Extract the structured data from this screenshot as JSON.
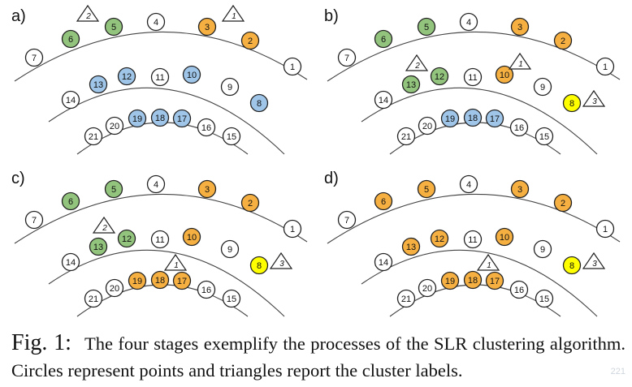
{
  "panels": [
    {
      "label": "a)",
      "nodes": [
        {
          "id": "1",
          "color": "white"
        },
        {
          "id": "2",
          "color": "orange"
        },
        {
          "id": "3",
          "color": "orange"
        },
        {
          "id": "4",
          "color": "white"
        },
        {
          "id": "5",
          "color": "green"
        },
        {
          "id": "6",
          "color": "green"
        },
        {
          "id": "7",
          "color": "white"
        },
        {
          "id": "8",
          "color": "blue"
        },
        {
          "id": "9",
          "color": "white"
        },
        {
          "id": "10",
          "color": "blue"
        },
        {
          "id": "11",
          "color": "white"
        },
        {
          "id": "12",
          "color": "blue"
        },
        {
          "id": "13",
          "color": "blue"
        },
        {
          "id": "14",
          "color": "white"
        },
        {
          "id": "15",
          "color": "white"
        },
        {
          "id": "16",
          "color": "white"
        },
        {
          "id": "17",
          "color": "blue"
        },
        {
          "id": "18",
          "color": "blue"
        },
        {
          "id": "19",
          "color": "blue"
        },
        {
          "id": "20",
          "color": "white"
        },
        {
          "id": "21",
          "color": "white"
        }
      ],
      "triangles": [
        {
          "label": "2",
          "slot": "top-left"
        },
        {
          "label": "1",
          "slot": "top-right"
        }
      ]
    },
    {
      "label": "b)",
      "nodes": [
        {
          "id": "1",
          "color": "white"
        },
        {
          "id": "2",
          "color": "orange"
        },
        {
          "id": "3",
          "color": "orange"
        },
        {
          "id": "4",
          "color": "white"
        },
        {
          "id": "5",
          "color": "green"
        },
        {
          "id": "6",
          "color": "green"
        },
        {
          "id": "7",
          "color": "white"
        },
        {
          "id": "8",
          "color": "yellow"
        },
        {
          "id": "9",
          "color": "white"
        },
        {
          "id": "10",
          "color": "orange"
        },
        {
          "id": "11",
          "color": "white"
        },
        {
          "id": "12",
          "color": "green"
        },
        {
          "id": "13",
          "color": "green"
        },
        {
          "id": "14",
          "color": "white"
        },
        {
          "id": "15",
          "color": "white"
        },
        {
          "id": "16",
          "color": "white"
        },
        {
          "id": "17",
          "color": "blue"
        },
        {
          "id": "18",
          "color": "blue"
        },
        {
          "id": "19",
          "color": "blue"
        },
        {
          "id": "20",
          "color": "white"
        },
        {
          "id": "21",
          "color": "white"
        }
      ],
      "triangles": [
        {
          "label": "2",
          "slot": "mid-left"
        },
        {
          "label": "1",
          "slot": "mid-right"
        },
        {
          "label": "3",
          "slot": "right"
        }
      ]
    },
    {
      "label": "c)",
      "nodes": [
        {
          "id": "1",
          "color": "white"
        },
        {
          "id": "2",
          "color": "orange"
        },
        {
          "id": "3",
          "color": "orange"
        },
        {
          "id": "4",
          "color": "white"
        },
        {
          "id": "5",
          "color": "green"
        },
        {
          "id": "6",
          "color": "green"
        },
        {
          "id": "7",
          "color": "white"
        },
        {
          "id": "8",
          "color": "yellow"
        },
        {
          "id": "9",
          "color": "white"
        },
        {
          "id": "10",
          "color": "orange"
        },
        {
          "id": "11",
          "color": "white"
        },
        {
          "id": "12",
          "color": "green"
        },
        {
          "id": "13",
          "color": "green"
        },
        {
          "id": "14",
          "color": "white"
        },
        {
          "id": "15",
          "color": "white"
        },
        {
          "id": "16",
          "color": "white"
        },
        {
          "id": "17",
          "color": "orange"
        },
        {
          "id": "18",
          "color": "orange"
        },
        {
          "id": "19",
          "color": "orange"
        },
        {
          "id": "20",
          "color": "white"
        },
        {
          "id": "21",
          "color": "white"
        }
      ],
      "triangles": [
        {
          "label": "2",
          "slot": "mid-left"
        },
        {
          "label": "1",
          "slot": "inner"
        },
        {
          "label": "3",
          "slot": "right"
        }
      ]
    },
    {
      "label": "d)",
      "nodes": [
        {
          "id": "1",
          "color": "white"
        },
        {
          "id": "2",
          "color": "orange"
        },
        {
          "id": "3",
          "color": "orange"
        },
        {
          "id": "4",
          "color": "white"
        },
        {
          "id": "5",
          "color": "orange"
        },
        {
          "id": "6",
          "color": "orange"
        },
        {
          "id": "7",
          "color": "white"
        },
        {
          "id": "8",
          "color": "yellow"
        },
        {
          "id": "9",
          "color": "white"
        },
        {
          "id": "10",
          "color": "orange"
        },
        {
          "id": "11",
          "color": "white"
        },
        {
          "id": "12",
          "color": "orange"
        },
        {
          "id": "13",
          "color": "orange"
        },
        {
          "id": "14",
          "color": "white"
        },
        {
          "id": "15",
          "color": "white"
        },
        {
          "id": "16",
          "color": "white"
        },
        {
          "id": "17",
          "color": "orange"
        },
        {
          "id": "18",
          "color": "orange"
        },
        {
          "id": "19",
          "color": "orange"
        },
        {
          "id": "20",
          "color": "white"
        },
        {
          "id": "21",
          "color": "white"
        }
      ],
      "triangles": [
        {
          "label": "1",
          "slot": "inner"
        },
        {
          "label": "3",
          "slot": "right"
        }
      ]
    }
  ],
  "colors": {
    "white": "#ffffff",
    "green": "#93c47d",
    "orange": "#f6b041",
    "blue": "#9fc5e8",
    "yellow": "#ffff00",
    "stroke": "#222222"
  },
  "caption": {
    "figure_label": "Fig. 1:",
    "text": "The four stages exemplify the processes of the SLR clustering algorithm. Circles represent points and triangles report the cluster labels."
  },
  "watermark": "221"
}
